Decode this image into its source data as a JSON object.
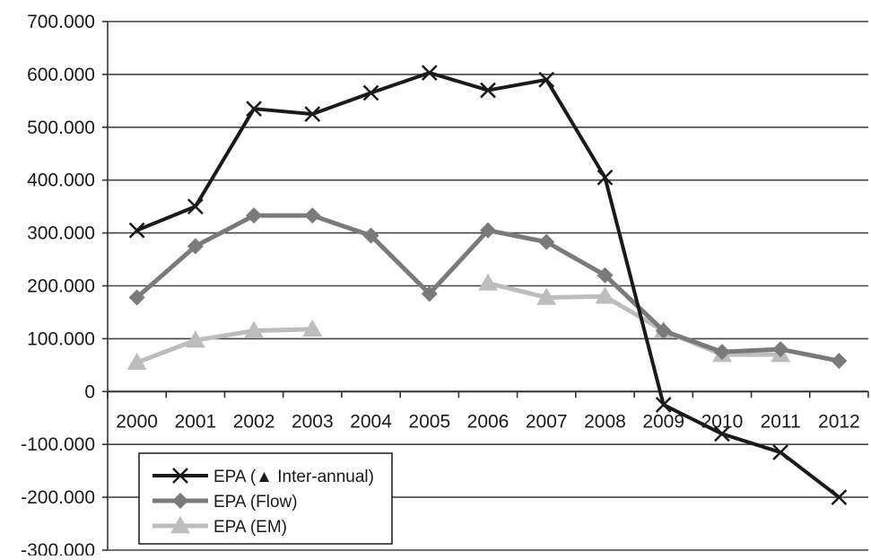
{
  "chart_data": {
    "type": "line",
    "title": "",
    "xlabel": "",
    "ylabel": "",
    "categories": [
      "2000",
      "2001",
      "2002",
      "2003",
      "2004",
      "2005",
      "2006",
      "2007",
      "2008",
      "2009",
      "2010",
      "2011",
      "2012"
    ],
    "ylim": [
      -300000,
      700000
    ],
    "y_ticks": [
      700000,
      600000,
      500000,
      400000,
      300000,
      200000,
      100000,
      0,
      -100000,
      -200000,
      -300000
    ],
    "y_tick_labels": [
      "700.000",
      "600.000",
      "500.000",
      "400.000",
      "300.000",
      "200.000",
      "100.000",
      "0",
      "-100.000",
      "-200.000",
      "-300.000"
    ],
    "grid": "horizontal",
    "legend_position": "bottom-left",
    "series": [
      {
        "name": "EPA (▲ Inter-annual)",
        "marker": "x",
        "color": "#1a1a1a",
        "values": [
          305000,
          350000,
          535000,
          525000,
          565000,
          603000,
          570000,
          590000,
          405000,
          -25000,
          -80000,
          -115000,
          -200000
        ]
      },
      {
        "name": "EPA (Flow)",
        "marker": "diamond",
        "color": "#7a7a7a",
        "values": [
          178000,
          275000,
          333000,
          333000,
          295000,
          185000,
          305000,
          283000,
          220000,
          115000,
          75000,
          80000,
          58000
        ]
      },
      {
        "name": "EPA (EM)",
        "marker": "triangle",
        "color": "#bdbdbd",
        "values": [
          55000,
          97000,
          115000,
          118000,
          null,
          null,
          205000,
          178000,
          180000,
          115000,
          70000,
          70000,
          null
        ]
      }
    ]
  }
}
